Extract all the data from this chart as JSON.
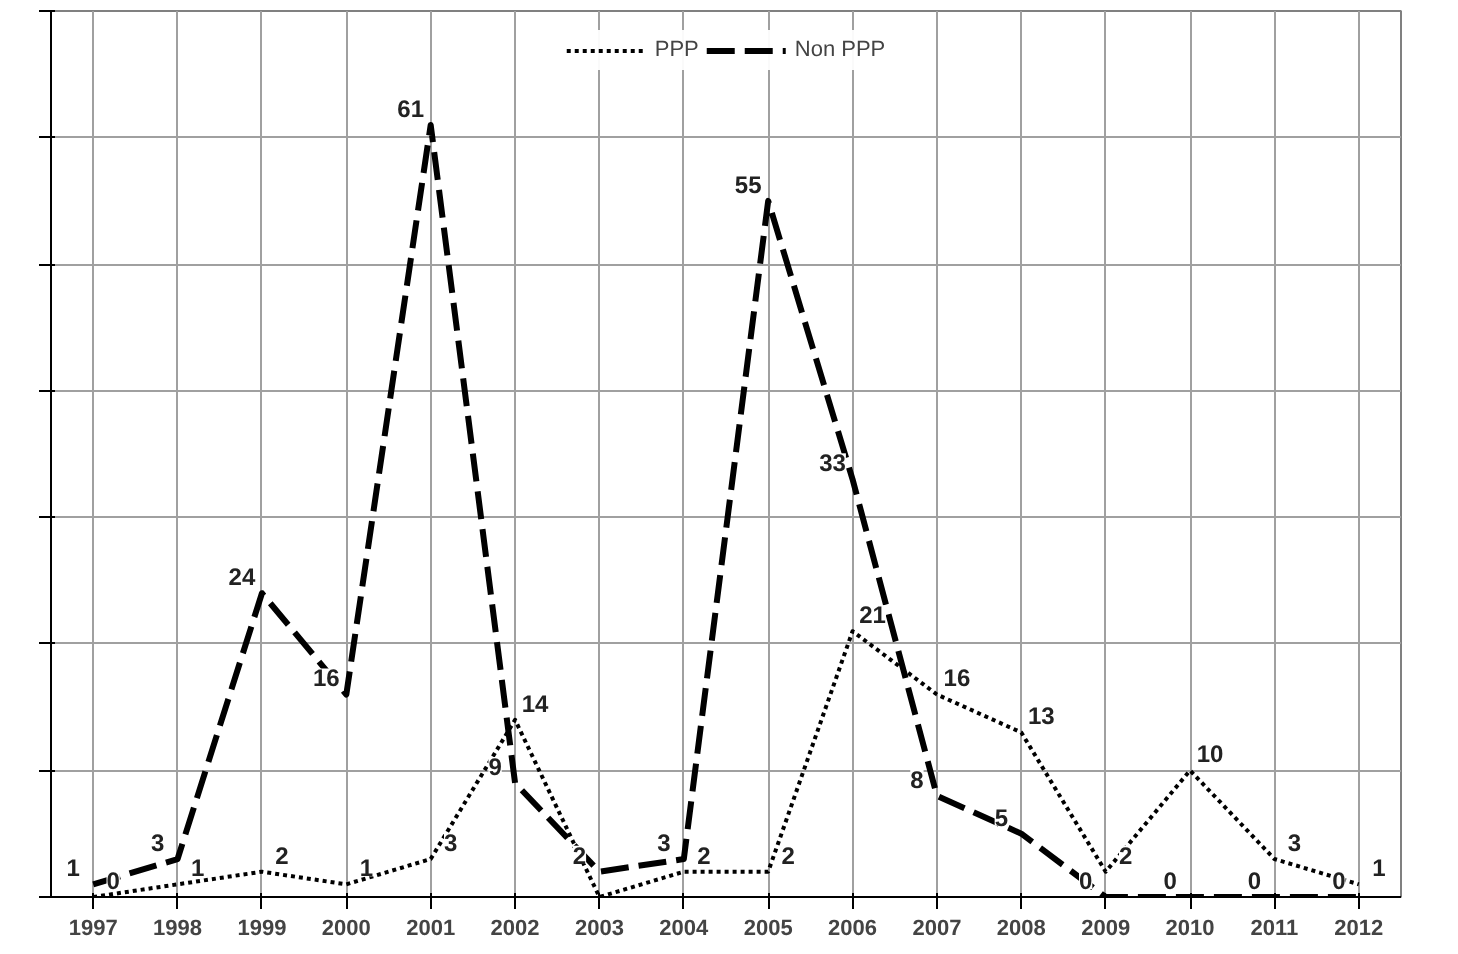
{
  "chart_data": {
    "type": "line",
    "categories": [
      "1997",
      "1998",
      "1999",
      "2000",
      "2001",
      "2002",
      "2003",
      "2004",
      "2005",
      "2006",
      "2007",
      "2008",
      "2009",
      "2010",
      "2011",
      "2012"
    ],
    "series": [
      {
        "name": "PPP",
        "color": "#000000",
        "line_style": "dotted",
        "values": [
          0,
          1,
          2,
          1,
          3,
          14,
          0,
          2,
          2,
          21,
          16,
          13,
          2,
          10,
          3,
          1
        ],
        "value_labels": [
          "0",
          "1",
          "2",
          "1",
          "3",
          "14",
          null,
          "2",
          "2",
          "21",
          "16",
          "13",
          "2",
          "10",
          "3",
          "1"
        ]
      },
      {
        "name": "Non PPP",
        "color": "#000000",
        "line_style": "dashed",
        "values": [
          1,
          3,
          24,
          16,
          61,
          9,
          2,
          3,
          55,
          33,
          8,
          5,
          0,
          0,
          0,
          0
        ]
      }
    ],
    "ylim": [
      0,
      70
    ],
    "yticks": [
      {
        "value": 0,
        "label": null
      },
      {
        "value": 10,
        "label": null
      },
      {
        "value": 20,
        "label": null
      },
      {
        "value": 30,
        "label": null
      },
      {
        "value": 40,
        "label": null
      },
      {
        "value": 50,
        "label": null
      },
      {
        "value": 60,
        "label": null
      },
      {
        "value": 70,
        "label": null
      }
    ],
    "tick_labels": "x",
    "grid": true,
    "legend": "top",
    "data_labels": true
  }
}
